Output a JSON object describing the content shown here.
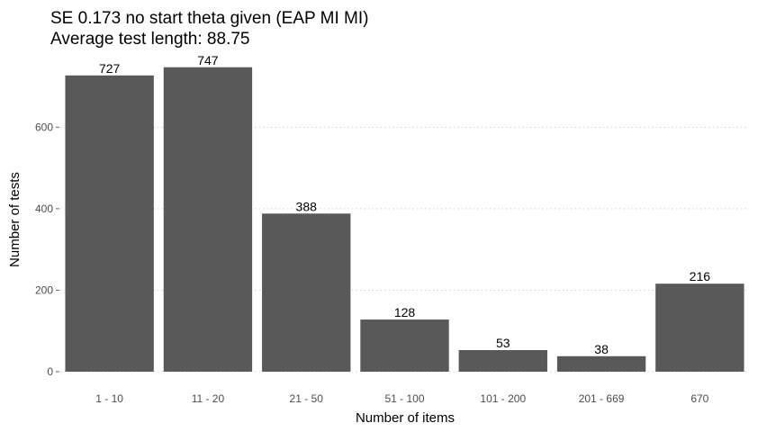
{
  "chart_data": {
    "type": "bar",
    "title": "SE 0.173 no start theta given (EAP MI MI)",
    "subtitle": "Average test length: 88.75",
    "xlabel": "Number of items",
    "ylabel": "Number of tests",
    "categories": [
      "1 - 10",
      "11 - 20",
      "21 - 50",
      "51 - 100",
      "101 - 200",
      "201 - 669",
      "670"
    ],
    "values": [
      727,
      747,
      388,
      128,
      53,
      38,
      216
    ],
    "data_labels": [
      "727",
      "747",
      "388",
      "128",
      "53",
      "38",
      "216"
    ],
    "ylim": [
      0,
      784
    ],
    "yticks": [
      0,
      200,
      400,
      600
    ],
    "ytick_labels": [
      "0",
      "200",
      "400",
      "600"
    ],
    "grid": "horizontal dotted",
    "legend": "none",
    "bar_color": "#595959",
    "grid_color": "#d0d0d0"
  }
}
